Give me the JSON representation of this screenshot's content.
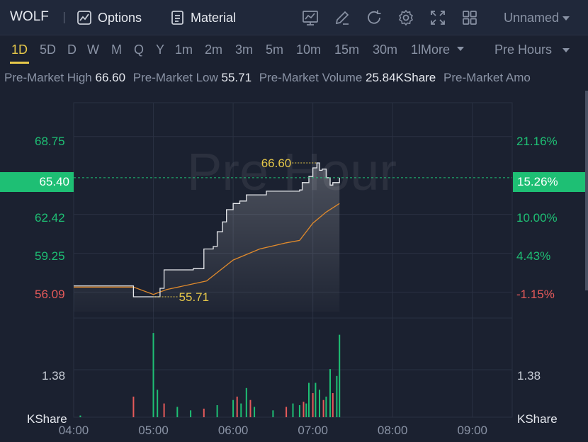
{
  "header": {
    "ticker": "WOLF",
    "options_label": "Options",
    "material_label": "Material",
    "layout_name": "Unnamed"
  },
  "periods": [
    {
      "label": "1D",
      "active": true
    },
    {
      "label": "5D"
    },
    {
      "label": "D"
    },
    {
      "label": "W"
    },
    {
      "label": "M"
    },
    {
      "label": "Q"
    },
    {
      "label": "Y"
    },
    {
      "label": "1m"
    },
    {
      "label": "2m"
    },
    {
      "label": "3m"
    },
    {
      "label": "5m"
    },
    {
      "label": "10m"
    },
    {
      "label": "15m"
    },
    {
      "label": "30m"
    },
    {
      "label": "1lMore"
    }
  ],
  "session_selector": "Pre Hours",
  "stats": {
    "high_label": "Pre-Market High",
    "high_value": "66.60",
    "low_label": "Pre-Market Low",
    "low_value": "55.71",
    "volume_label": "Pre-Market Volume",
    "volume_value": "25.84KShare",
    "amount_label": "Pre-Market Amo"
  },
  "chart": {
    "watermark": "Pre Hour",
    "current_price": "65.40",
    "current_change": "15.26%",
    "price_axis": [
      {
        "price": "68.75",
        "pct": "21.16%",
        "color": "#1ebf74"
      },
      {
        "price": "62.42",
        "pct": "10.00%",
        "color": "#1ebf74"
      },
      {
        "price": "59.25",
        "pct": "4.43%",
        "color": "#1ebf74"
      },
      {
        "price": "56.09",
        "pct": "-1.15%",
        "color": "#e65a5a"
      }
    ],
    "volume_axis": {
      "value": "1.38",
      "unit": "KShare"
    },
    "high_marker": "66.60",
    "low_marker": "55.71",
    "time_labels": [
      "04:00",
      "05:00",
      "06:00",
      "07:00",
      "08:00",
      "09:00"
    ]
  },
  "chart_data": {
    "type": "line",
    "x_unit": "time",
    "price_series": {
      "x": [
        "04:00",
        "04:35",
        "04:45",
        "05:00",
        "05:05",
        "05:08",
        "05:15",
        "05:25",
        "05:30",
        "05:38",
        "05:45",
        "05:48",
        "05:52",
        "05:55",
        "06:00",
        "06:05",
        "06:10",
        "06:20",
        "06:25",
        "06:35",
        "06:50",
        "06:52",
        "06:57",
        "07:00",
        "07:03",
        "07:05",
        "07:07",
        "07:10",
        "07:13",
        "07:15",
        "07:20"
      ],
      "y": [
        56.6,
        56.6,
        55.71,
        55.71,
        56.4,
        57.9,
        57.9,
        57.9,
        58.0,
        59.6,
        59.8,
        61.0,
        61.8,
        62.8,
        63.3,
        63.5,
        64.0,
        64.0,
        64.3,
        64.3,
        64.4,
        65.0,
        65.5,
        66.2,
        66.6,
        66.0,
        66.1,
        65.4,
        64.8,
        65.0,
        65.4
      ]
    },
    "avg_series": {
      "x": [
        "04:00",
        "04:45",
        "05:00",
        "05:10",
        "05:40",
        "06:00",
        "06:20",
        "06:40",
        "06:50",
        "07:00",
        "07:10",
        "07:20"
      ],
      "y": [
        56.5,
        56.5,
        55.9,
        56.3,
        57.0,
        58.7,
        59.6,
        60.1,
        60.3,
        61.7,
        62.6,
        63.3
      ]
    },
    "volume_series": {
      "x": [
        "04:05",
        "04:45",
        "05:00",
        "05:03",
        "05:08",
        "05:18",
        "05:28",
        "05:38",
        "05:48",
        "06:00",
        "06:03",
        "06:06",
        "06:10",
        "06:13",
        "06:16",
        "06:30",
        "06:40",
        "06:45",
        "06:50",
        "06:53",
        "06:55",
        "06:57",
        "07:00",
        "07:02",
        "07:05",
        "07:08",
        "07:10",
        "07:13",
        "07:15",
        "07:18",
        "07:20"
      ],
      "y": [
        0.05,
        0.6,
        2.45,
        0.8,
        0.4,
        0.3,
        0.2,
        0.25,
        0.35,
        0.5,
        0.6,
        0.4,
        0.85,
        0.5,
        0.3,
        0.2,
        0.3,
        0.4,
        0.35,
        0.45,
        0.4,
        1.0,
        0.7,
        1.0,
        0.8,
        0.5,
        0.6,
        1.4,
        0.7,
        1.2,
        2.4
      ]
    },
    "ylim": [
      54.5,
      71.5
    ],
    "volume_ylim": [
      0,
      2.7
    ],
    "grid": true
  }
}
